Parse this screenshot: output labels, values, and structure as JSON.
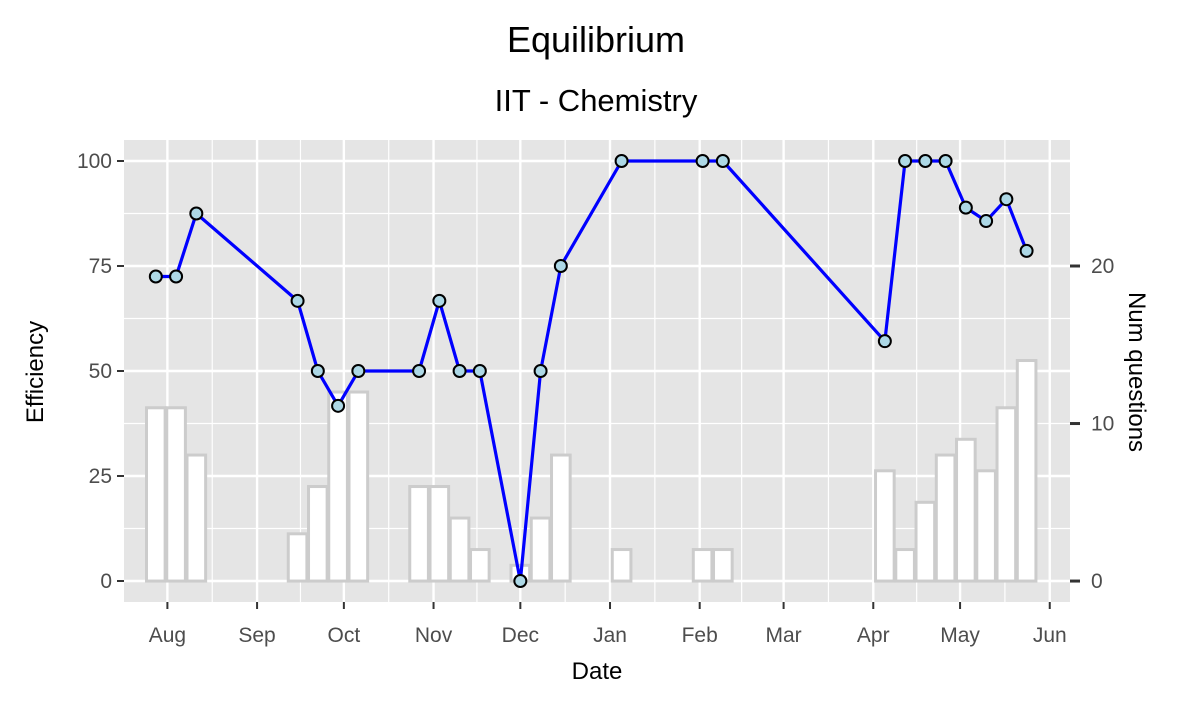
{
  "chart_data": {
    "type": "line",
    "title": "Equilibrium",
    "subtitle": "IIT - Chemistry",
    "xlabel": "Date",
    "ylabel": "Efficiency",
    "y2label": "Num questions",
    "xlim": [
      "2019-07-17",
      "2020-06-08"
    ],
    "ylim": [
      -5,
      105
    ],
    "y2lim": [
      -1.33,
      28.0
    ],
    "x_ticks": [
      {
        "date": "2019-08-01",
        "label": "Aug"
      },
      {
        "date": "2019-09-01",
        "label": "Sep"
      },
      {
        "date": "2019-10-01",
        "label": "Oct"
      },
      {
        "date": "2019-11-01",
        "label": "Nov"
      },
      {
        "date": "2019-12-01",
        "label": "Dec"
      },
      {
        "date": "2020-01-01",
        "label": "Jan"
      },
      {
        "date": "2020-02-01",
        "label": "Feb"
      },
      {
        "date": "2020-03-01",
        "label": "Mar"
      },
      {
        "date": "2020-04-01",
        "label": "Apr"
      },
      {
        "date": "2020-05-01",
        "label": "May"
      },
      {
        "date": "2020-06-01",
        "label": "Jun"
      }
    ],
    "y_ticks": [
      {
        "value": 0,
        "label": "0"
      },
      {
        "value": 25,
        "label": "25"
      },
      {
        "value": 50,
        "label": "50"
      },
      {
        "value": 75,
        "label": "75"
      },
      {
        "value": 100,
        "label": "100"
      }
    ],
    "y2_ticks": [
      {
        "value": 0,
        "label": "0"
      },
      {
        "value": 10,
        "label": "10"
      },
      {
        "value": 20,
        "label": "20"
      }
    ],
    "grid": true,
    "colors": {
      "panel": "#e5e5e5",
      "grid": "#ffffff",
      "line": "#0000ff",
      "point_fill": "#add8e6",
      "point_stroke": "#000000",
      "bar_stroke": "#cccccc",
      "bar_fill": "#ffffff"
    },
    "series": [
      {
        "kind": "line",
        "points": [
          {
            "x": "2019-07-28",
            "y": 72.5
          },
          {
            "x": "2019-08-04",
            "y": 72.5
          },
          {
            "x": "2019-08-11",
            "y": 87.5
          },
          {
            "x": "2019-09-15",
            "y": 66.7
          },
          {
            "x": "2019-09-22",
            "y": 50
          },
          {
            "x": "2019-09-29",
            "y": 41.7
          },
          {
            "x": "2019-10-06",
            "y": 50
          },
          {
            "x": "2019-10-27",
            "y": 50
          },
          {
            "x": "2019-11-03",
            "y": 66.7
          },
          {
            "x": "2019-11-10",
            "y": 50
          },
          {
            "x": "2019-11-17",
            "y": 50
          },
          {
            "x": "2019-12-01",
            "y": 0
          },
          {
            "x": "2019-12-08",
            "y": 50
          },
          {
            "x": "2019-12-15",
            "y": 75
          },
          {
            "x": "2020-01-05",
            "y": 100
          },
          {
            "x": "2020-02-02",
            "y": 100
          },
          {
            "x": "2020-02-09",
            "y": 100
          },
          {
            "x": "2020-04-05",
            "y": 57.1
          },
          {
            "x": "2020-04-12",
            "y": 100
          },
          {
            "x": "2020-04-19",
            "y": 100
          },
          {
            "x": "2020-04-26",
            "y": 100
          },
          {
            "x": "2020-05-03",
            "y": 88.9
          },
          {
            "x": "2020-05-10",
            "y": 85.7
          },
          {
            "x": "2020-05-17",
            "y": 90.9
          },
          {
            "x": "2020-05-24",
            "y": 78.6
          }
        ]
      },
      {
        "kind": "bar",
        "axis": "secondary",
        "bars": [
          {
            "x": "2019-07-28",
            "y": 11
          },
          {
            "x": "2019-08-04",
            "y": 11
          },
          {
            "x": "2019-08-11",
            "y": 8
          },
          {
            "x": "2019-09-15",
            "y": 3
          },
          {
            "x": "2019-09-22",
            "y": 6
          },
          {
            "x": "2019-09-29",
            "y": 12
          },
          {
            "x": "2019-10-06",
            "y": 12
          },
          {
            "x": "2019-10-27",
            "y": 6
          },
          {
            "x": "2019-11-03",
            "y": 6
          },
          {
            "x": "2019-11-10",
            "y": 4
          },
          {
            "x": "2019-11-17",
            "y": 2
          },
          {
            "x": "2019-12-01",
            "y": 1
          },
          {
            "x": "2019-12-08",
            "y": 4
          },
          {
            "x": "2019-12-15",
            "y": 8
          },
          {
            "x": "2020-01-05",
            "y": 2
          },
          {
            "x": "2020-02-02",
            "y": 2
          },
          {
            "x": "2020-02-09",
            "y": 2
          },
          {
            "x": "2020-04-05",
            "y": 7
          },
          {
            "x": "2020-04-12",
            "y": 2
          },
          {
            "x": "2020-04-19",
            "y": 5
          },
          {
            "x": "2020-04-26",
            "y": 8
          },
          {
            "x": "2020-05-03",
            "y": 9
          },
          {
            "x": "2020-05-10",
            "y": 7
          },
          {
            "x": "2020-05-17",
            "y": 11
          },
          {
            "x": "2020-05-24",
            "y": 14
          }
        ]
      }
    ]
  }
}
